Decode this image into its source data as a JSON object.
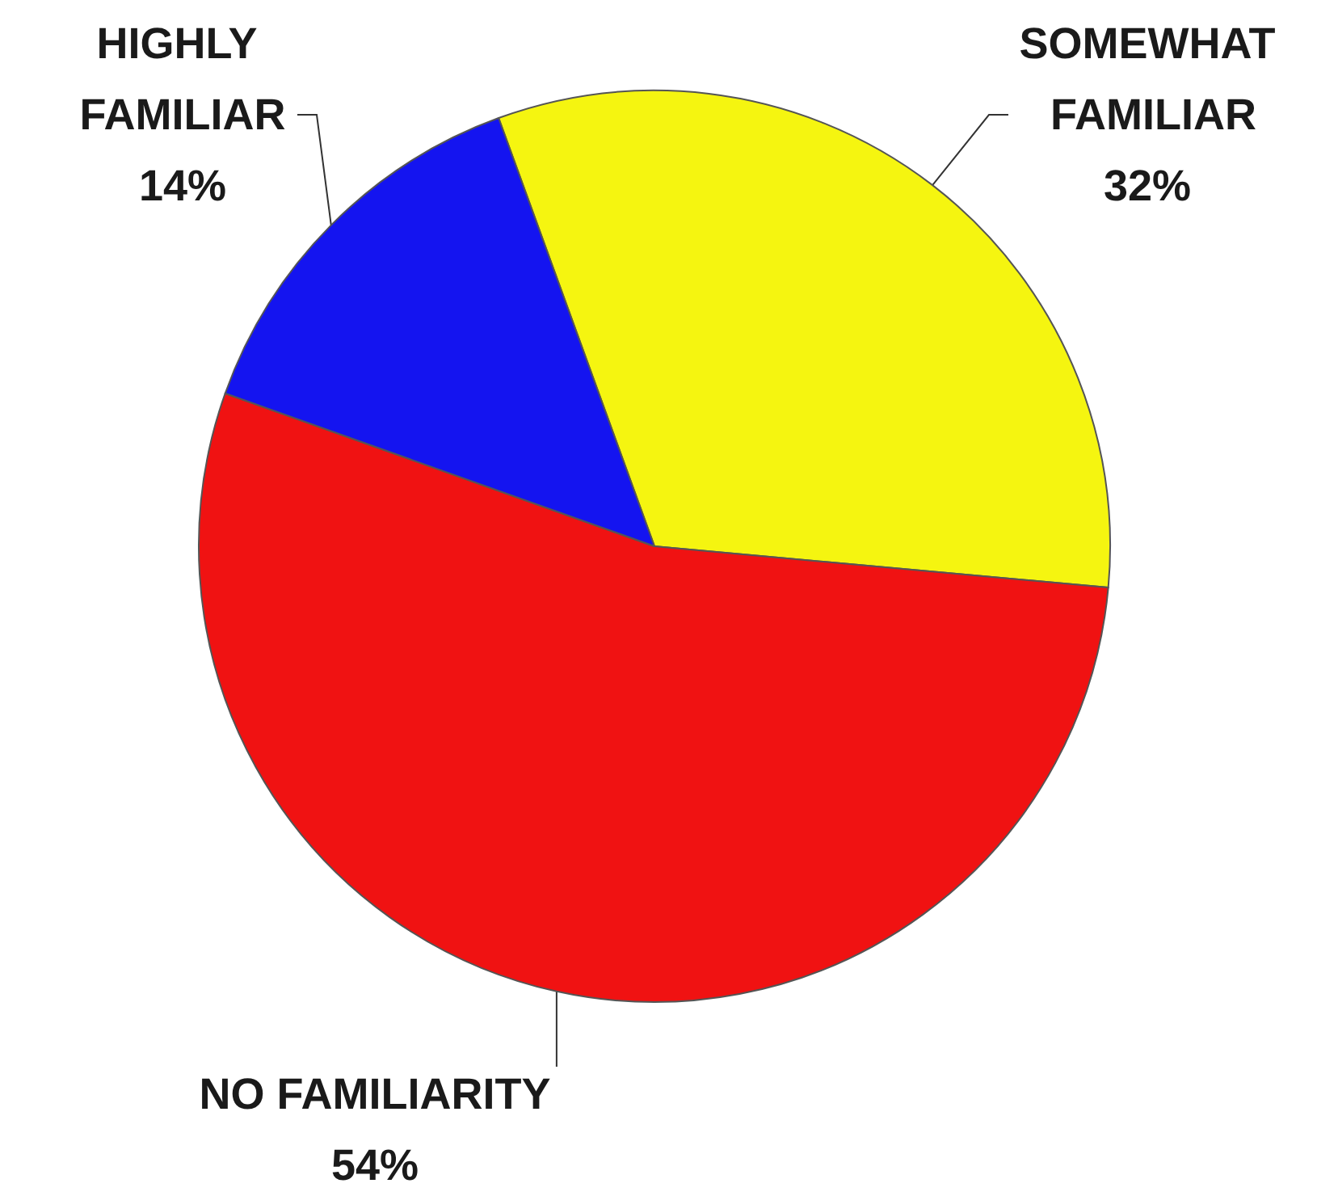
{
  "chart_data": {
    "type": "pie",
    "categories": [
      "SOMEWHAT FAMILIAR",
      "NO FAMILIARITY",
      "HIGHLY FAMILIAR"
    ],
    "values": [
      32,
      54,
      14
    ],
    "colors": [
      "#f5f510",
      "#f01212",
      "#1414f0"
    ],
    "value_labels": [
      "32%",
      "54%",
      "14%"
    ]
  }
}
